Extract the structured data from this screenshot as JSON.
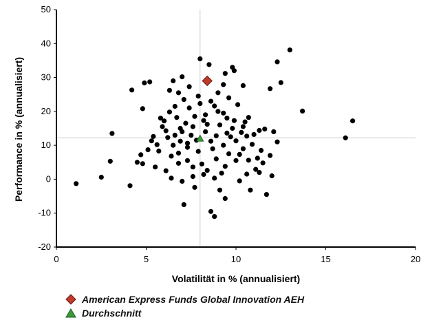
{
  "chart_data": {
    "type": "scatter",
    "xlabel": "Volatilität in % (annualisiert)",
    "ylabel": "Performance in % (annualisiert)",
    "xlim": [
      0,
      20
    ],
    "ylim": [
      -20,
      50
    ],
    "xticks": [
      "0",
      "5",
      "10",
      "15",
      "20"
    ],
    "yticks": [
      "-20",
      "-10",
      "0",
      "10",
      "20",
      "30",
      "40",
      "50"
    ],
    "reference_lines": {
      "x": 8.0,
      "y": 12.2
    },
    "highlight": {
      "name": "American Express Funds Global Innovation AEH",
      "x": 8.4,
      "y": 29.0,
      "color": "#c0392b",
      "marker": "diamond"
    },
    "average": {
      "name": "Durchschnitt",
      "x": 8.0,
      "y": 12.0,
      "color": "#3a9a3a",
      "marker": "triangle"
    },
    "legend_placement": "bottom-left",
    "grid": false,
    "cloud_points": [
      [
        1.1,
        -1.3
      ],
      [
        2.5,
        0.6
      ],
      [
        3.0,
        5.3
      ],
      [
        3.1,
        13.5
      ],
      [
        4.1,
        -1.9
      ],
      [
        4.2,
        26.3
      ],
      [
        4.5,
        5.0
      ],
      [
        4.8,
        4.6
      ],
      [
        4.8,
        20.8
      ],
      [
        4.9,
        28.4
      ],
      [
        5.2,
        28.7
      ],
      [
        5.4,
        12.6
      ],
      [
        5.6,
        10.2
      ],
      [
        5.8,
        18.0
      ],
      [
        7.1,
        -7.5
      ],
      [
        7.7,
        -2.4
      ],
      [
        8.0,
        35.5
      ],
      [
        8.6,
        -9.5
      ],
      [
        8.8,
        -11.0
      ],
      [
        9.1,
        -3.2
      ],
      [
        9.4,
        -5.7
      ],
      [
        9.4,
        31.2
      ],
      [
        9.8,
        33.0
      ],
      [
        9.9,
        32.0
      ],
      [
        10.4,
        27.6
      ],
      [
        10.8,
        -3.2
      ],
      [
        11.3,
        14.4
      ],
      [
        11.7,
        -4.5
      ],
      [
        11.9,
        26.7
      ],
      [
        12.1,
        14.0
      ],
      [
        12.3,
        34.6
      ],
      [
        12.3,
        11.0
      ],
      [
        12.5,
        28.5
      ],
      [
        13.0,
        38.1
      ],
      [
        13.7,
        20.1
      ],
      [
        16.1,
        12.2
      ],
      [
        16.5,
        17.2
      ],
      [
        11.6,
        14.8
      ],
      [
        11.0,
        13.2
      ],
      [
        10.7,
        18.2
      ],
      [
        10.5,
        16.9
      ],
      [
        8.5,
        33.8
      ],
      [
        9.3,
        27.9
      ],
      [
        6.5,
        29.0
      ],
      [
        6.8,
        25.5
      ],
      [
        7.4,
        27.3
      ],
      [
        6.1,
        2.5
      ],
      [
        6.4,
        0.3
      ],
      [
        7.0,
        -0.6
      ],
      [
        7.6,
        0.8
      ],
      [
        8.2,
        1.4
      ],
      [
        8.8,
        0.3
      ],
      [
        9.2,
        1.8
      ],
      [
        10.2,
        -0.5
      ],
      [
        10.6,
        1.5
      ],
      [
        11.1,
        2.9
      ],
      [
        11.5,
        4.8
      ],
      [
        11.2,
        6.2
      ],
      [
        10.9,
        10.3
      ],
      [
        10.4,
        9.0
      ],
      [
        10.1,
        22.0
      ],
      [
        9.6,
        24.0
      ],
      [
        9.0,
        25.5
      ],
      [
        8.6,
        23.0
      ],
      [
        7.9,
        24.5
      ],
      [
        7.1,
        23.5
      ],
      [
        6.6,
        21.5
      ],
      [
        6.3,
        19.8
      ],
      [
        6.0,
        17.2
      ],
      [
        5.9,
        15.5
      ],
      [
        6.2,
        12.3
      ],
      [
        6.5,
        10.0
      ],
      [
        6.8,
        7.7
      ],
      [
        7.3,
        5.5
      ],
      [
        8.1,
        4.5
      ],
      [
        8.9,
        6.0
      ],
      [
        9.6,
        7.5
      ],
      [
        10.0,
        11.3
      ],
      [
        9.8,
        15.0
      ],
      [
        9.5,
        18.0
      ],
      [
        9.0,
        20.0
      ],
      [
        8.3,
        19.0
      ],
      [
        7.7,
        18.5
      ],
      [
        7.2,
        16.5
      ],
      [
        6.9,
        15.0
      ],
      [
        7.5,
        13.0
      ],
      [
        8.3,
        14.0
      ],
      [
        8.9,
        12.8
      ],
      [
        9.3,
        10.0
      ],
      [
        8.7,
        9.0
      ],
      [
        7.9,
        8.2
      ],
      [
        7.3,
        9.4
      ],
      [
        6.9,
        11.2
      ],
      [
        7.8,
        11.5
      ],
      [
        8.4,
        16.2
      ],
      [
        9.1,
        16.0
      ],
      [
        9.7,
        12.5
      ],
      [
        10.3,
        13.8
      ],
      [
        10.0,
        5.5
      ],
      [
        9.4,
        3.8
      ],
      [
        8.4,
        2.6
      ],
      [
        7.6,
        3.6
      ],
      [
        6.8,
        4.7
      ],
      [
        6.4,
        6.8
      ],
      [
        5.7,
        8.3
      ],
      [
        5.3,
        11.3
      ],
      [
        6.1,
        14.3
      ],
      [
        6.7,
        18.2
      ],
      [
        7.4,
        21.0
      ],
      [
        8.0,
        22.3
      ],
      [
        8.8,
        21.6
      ],
      [
        9.3,
        19.5
      ],
      [
        9.9,
        17.3
      ],
      [
        10.4,
        15.5
      ],
      [
        7.0,
        14.0
      ],
      [
        7.6,
        15.5
      ],
      [
        8.2,
        17.3
      ],
      [
        6.6,
        13.0
      ],
      [
        7.3,
        10.6
      ],
      [
        8.6,
        11.2
      ],
      [
        9.5,
        13.6
      ],
      [
        10.2,
        7.3
      ],
      [
        10.7,
        5.6
      ],
      [
        11.4,
        8.5
      ],
      [
        11.9,
        7.0
      ],
      [
        5.1,
        8.7
      ],
      [
        4.7,
        7.2
      ],
      [
        5.5,
        3.6
      ],
      [
        6.3,
        26.2
      ],
      [
        7.0,
        30.2
      ],
      [
        10.6,
        12.7
      ],
      [
        11.3,
        2.0
      ],
      [
        12.0,
        1.0
      ]
    ]
  },
  "legend": {
    "items": [
      {
        "label": "American Express Funds Global Innovation AEH",
        "color": "#c0392b",
        "marker": "diamond"
      },
      {
        "label": "Durchschnitt",
        "color": "#3a9a3a",
        "marker": "triangle"
      }
    ]
  }
}
